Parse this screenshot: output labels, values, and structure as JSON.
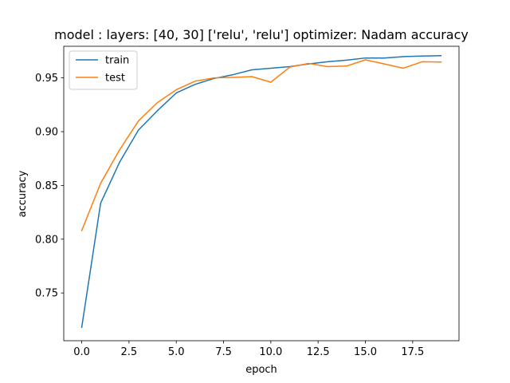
{
  "chart_data": {
    "type": "line",
    "title": "model : layers: [40, 30] ['relu', 'relu'] optimizer: Nadam accuracy",
    "xlabel": "epoch",
    "ylabel": "accuracy",
    "xlim": [
      -0.95,
      19.95
    ],
    "ylim": [
      0.7056,
      0.9794
    ],
    "xticks": [
      0.0,
      2.5,
      5.0,
      7.5,
      10.0,
      12.5,
      15.0,
      17.5
    ],
    "xtick_labels": [
      "0.0",
      "2.5",
      "5.0",
      "7.5",
      "10.0",
      "12.5",
      "15.0",
      "17.5"
    ],
    "yticks": [
      0.75,
      0.8,
      0.85,
      0.9,
      0.95
    ],
    "ytick_labels": [
      "0.75",
      "0.80",
      "0.85",
      "0.90",
      "0.95"
    ],
    "grid": false,
    "legend_position": "upper-left",
    "x": [
      0,
      1,
      2,
      3,
      4,
      5,
      6,
      7,
      8,
      9,
      10,
      11,
      12,
      13,
      14,
      15,
      16,
      17,
      18,
      19
    ],
    "series": [
      {
        "name": "train",
        "color": "#1f77b4",
        "values": [
          0.718,
          0.8335,
          0.8715,
          0.9015,
          0.9195,
          0.936,
          0.944,
          0.9495,
          0.953,
          0.9575,
          0.959,
          0.9605,
          0.963,
          0.965,
          0.9665,
          0.9685,
          0.9685,
          0.9698,
          0.9703,
          0.9707
        ]
      },
      {
        "name": "test",
        "color": "#ff7f0e",
        "values": [
          0.808,
          0.852,
          0.883,
          0.91,
          0.927,
          0.939,
          0.947,
          0.95,
          0.9505,
          0.9512,
          0.946,
          0.96,
          0.9635,
          0.9605,
          0.961,
          0.9668,
          0.963,
          0.959,
          0.965,
          0.9648
        ]
      }
    ]
  }
}
